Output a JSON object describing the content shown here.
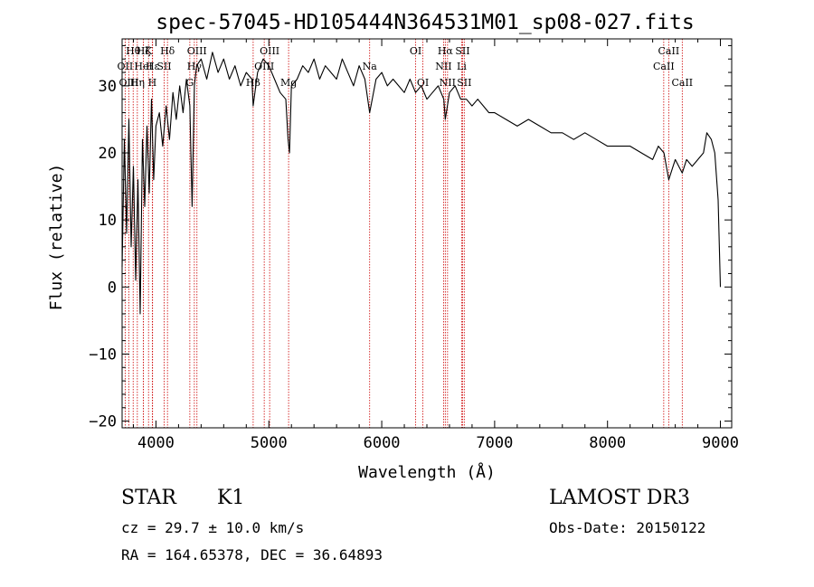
{
  "chart_data": {
    "type": "line",
    "title": "spec-57045-HD105444N364531M01_sp08-027.fits",
    "xlabel": "Wavelength (Å)",
    "ylabel": "Flux (relative)",
    "xlim": [
      3700,
      9100
    ],
    "ylim": [
      -21,
      37
    ],
    "xticks": [
      4000,
      5000,
      6000,
      7000,
      8000,
      9000
    ],
    "yticks": [
      -20,
      -10,
      0,
      10,
      20,
      30
    ],
    "spectrum": {
      "name": "flux",
      "x": [
        3700,
        3720,
        3740,
        3760,
        3780,
        3800,
        3820,
        3840,
        3860,
        3880,
        3900,
        3920,
        3940,
        3960,
        3980,
        4000,
        4030,
        4060,
        4090,
        4120,
        4150,
        4180,
        4210,
        4240,
        4270,
        4300,
        4320,
        4340,
        4360,
        4400,
        4450,
        4500,
        4550,
        4600,
        4650,
        4700,
        4750,
        4800,
        4850,
        4861,
        4900,
        4950,
        5000,
        5050,
        5100,
        5150,
        5170,
        5183,
        5200,
        5250,
        5300,
        5350,
        5400,
        5450,
        5500,
        5550,
        5600,
        5650,
        5700,
        5750,
        5800,
        5850,
        5893,
        5950,
        6000,
        6050,
        6100,
        6150,
        6200,
        6250,
        6300,
        6350,
        6400,
        6450,
        6500,
        6550,
        6563,
        6600,
        6650,
        6700,
        6750,
        6800,
        6850,
        6900,
        6950,
        7000,
        7100,
        7200,
        7300,
        7400,
        7500,
        7600,
        7700,
        7800,
        7900,
        8000,
        8100,
        8200,
        8300,
        8400,
        8450,
        8500,
        8542,
        8600,
        8662,
        8700,
        8750,
        8800,
        8850,
        8880,
        8920,
        8950,
        8980,
        9000
      ],
      "y": [
        3,
        22,
        8,
        25,
        6,
        18,
        1,
        16,
        -4,
        22,
        12,
        24,
        14,
        28,
        16,
        24,
        26,
        21,
        27,
        22,
        29,
        25,
        30,
        26,
        31,
        27,
        12,
        30,
        33,
        34,
        31,
        35,
        32,
        34,
        31,
        33,
        30,
        32,
        31,
        27,
        32,
        34,
        33,
        31,
        29,
        28,
        22,
        20,
        30,
        31,
        33,
        32,
        34,
        31,
        33,
        32,
        31,
        34,
        32,
        30,
        33,
        31,
        26,
        31,
        32,
        30,
        31,
        30,
        29,
        31,
        29,
        30,
        28,
        29,
        30,
        28,
        25,
        29,
        30,
        28,
        28,
        27,
        28,
        27,
        26,
        26,
        25,
        24,
        25,
        24,
        23,
        23,
        22,
        23,
        22,
        21,
        21,
        21,
        20,
        19,
        21,
        20,
        16,
        19,
        17,
        19,
        18,
        19,
        20,
        23,
        22,
        20,
        13,
        0
      ]
    },
    "line_markers": [
      {
        "name": "Hθ",
        "wavelength": 3798,
        "row": 0
      },
      {
        "name": "OII",
        "wavelength": 3727,
        "row": 1
      },
      {
        "name": "OIII",
        "wavelength": 3760,
        "row": 2
      },
      {
        "name": "Hη",
        "wavelength": 3835,
        "row": 2
      },
      {
        "name": "Hζ",
        "wavelength": 3889,
        "row": 0
      },
      {
        "name": "HeI",
        "wavelength": 3889,
        "row": 1
      },
      {
        "name": "K",
        "wavelength": 3934,
        "row": 0
      },
      {
        "name": "H",
        "wavelength": 3968,
        "row": 2
      },
      {
        "name": "Hε",
        "wavelength": 3970,
        "row": 1
      },
      {
        "name": "SII",
        "wavelength": 4072,
        "row": 1
      },
      {
        "name": "Hδ",
        "wavelength": 4102,
        "row": 0
      },
      {
        "name": "G",
        "wavelength": 4300,
        "row": 2
      },
      {
        "name": "OIII",
        "wavelength": 4363,
        "row": 0
      },
      {
        "name": "Hγ",
        "wavelength": 4340,
        "row": 1
      },
      {
        "name": "Hβ",
        "wavelength": 4861,
        "row": 2
      },
      {
        "name": "OIII",
        "wavelength": 4959,
        "row": 1
      },
      {
        "name": "OIII",
        "wavelength": 5007,
        "row": 0
      },
      {
        "name": "Mg",
        "wavelength": 5175,
        "row": 2
      },
      {
        "name": "Na",
        "wavelength": 5893,
        "row": 1
      },
      {
        "name": "OI",
        "wavelength": 6300,
        "row": 0
      },
      {
        "name": "OI",
        "wavelength": 6364,
        "row": 2
      },
      {
        "name": "NII",
        "wavelength": 6548,
        "row": 1
      },
      {
        "name": "Hα",
        "wavelength": 6563,
        "row": 0
      },
      {
        "name": "NII",
        "wavelength": 6583,
        "row": 2
      },
      {
        "name": "SII",
        "wavelength": 6716,
        "row": 0
      },
      {
        "name": "Li",
        "wavelength": 6708,
        "row": 1
      },
      {
        "name": "SII",
        "wavelength": 6731,
        "row": 2
      },
      {
        "name": "CaII",
        "wavelength": 8498,
        "row": 1
      },
      {
        "name": "CaII",
        "wavelength": 8542,
        "row": 0
      },
      {
        "name": "CaII",
        "wavelength": 8662,
        "row": 2
      }
    ],
    "colors": {
      "spectrum": "#000000",
      "markers": "#cc0000"
    }
  },
  "info": {
    "object_class": "STAR",
    "subclass": "K1",
    "survey": "LAMOST DR3",
    "cz": "cz = 29.7 ± 10.0 km/s",
    "obs_date": "Obs-Date: 20150122",
    "coords": "RA = 164.65378, DEC =  36.64893"
  }
}
